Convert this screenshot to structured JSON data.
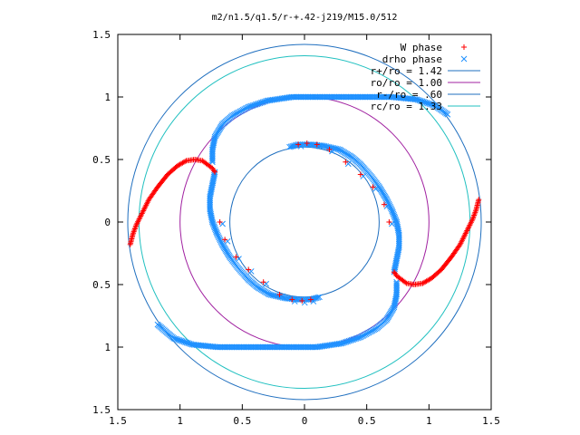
{
  "chart_data": {
    "type": "scatter",
    "title": "m2/n1.5/q1.5/r-+.42-j219/M15.0/512",
    "xlabel": "",
    "ylabel": "",
    "xlim": [
      -1.5,
      1.5
    ],
    "ylim": [
      -1.5,
      1.5
    ],
    "x_ticks": [
      {
        "value": -1.5,
        "label": "1.5"
      },
      {
        "value": -1.0,
        "label": "1"
      },
      {
        "value": -0.5,
        "label": "0.5"
      },
      {
        "value": 0,
        "label": "0"
      },
      {
        "value": 0.5,
        "label": "0.5"
      },
      {
        "value": 1.0,
        "label": "1"
      },
      {
        "value": 1.5,
        "label": "1.5"
      }
    ],
    "y_ticks": [
      {
        "value": 1.5,
        "label": "1.5"
      },
      {
        "value": 1.0,
        "label": "1"
      },
      {
        "value": 0.5,
        "label": "0.5"
      },
      {
        "value": 0,
        "label": "0"
      },
      {
        "value": -0.5,
        "label": "0.5"
      },
      {
        "value": -1.0,
        "label": "1"
      },
      {
        "value": -1.5,
        "label": "1.5"
      }
    ],
    "grid": false,
    "legend_position": "top-right",
    "series": [
      {
        "name": "W phase",
        "marker": "+",
        "color": "#ff0000",
        "arms": [
          [
            [
              -1.4,
              -0.18
            ],
            [
              -1.38,
              -0.1
            ],
            [
              -1.35,
              -0.02
            ],
            [
              -1.3,
              0.08
            ],
            [
              -1.25,
              0.18
            ],
            [
              -1.18,
              0.28
            ],
            [
              -1.1,
              0.38
            ],
            [
              -1.02,
              0.45
            ],
            [
              -0.95,
              0.49
            ],
            [
              -0.88,
              0.5
            ],
            [
              -0.82,
              0.49
            ],
            [
              -0.78,
              0.46
            ],
            [
              -0.74,
              0.43
            ],
            [
              -0.72,
              0.4
            ]
          ],
          [
            [
              1.4,
              0.18
            ],
            [
              1.38,
              0.1
            ],
            [
              1.35,
              0.02
            ],
            [
              1.3,
              -0.08
            ],
            [
              1.25,
              -0.18
            ],
            [
              1.18,
              -0.28
            ],
            [
              1.1,
              -0.38
            ],
            [
              1.02,
              -0.45
            ],
            [
              0.95,
              -0.49
            ],
            [
              0.88,
              -0.5
            ],
            [
              0.82,
              -0.49
            ],
            [
              0.78,
              -0.46
            ],
            [
              0.74,
              -0.43
            ],
            [
              0.72,
              -0.4
            ]
          ]
        ],
        "scattered": [
          [
            -0.05,
            0.62
          ],
          [
            0.02,
            0.63
          ],
          [
            0.1,
            0.62
          ],
          [
            0.2,
            0.58
          ],
          [
            0.33,
            0.48
          ],
          [
            0.45,
            0.38
          ],
          [
            0.55,
            0.28
          ],
          [
            0.64,
            0.14
          ],
          [
            0.68,
            0.0
          ],
          [
            0.05,
            -0.62
          ],
          [
            -0.02,
            -0.63
          ],
          [
            -0.1,
            -0.62
          ],
          [
            -0.2,
            -0.58
          ],
          [
            -0.33,
            -0.48
          ],
          [
            -0.45,
            -0.38
          ],
          [
            -0.55,
            -0.28
          ],
          [
            -0.64,
            -0.14
          ],
          [
            -0.68,
            0.0
          ]
        ]
      },
      {
        "name": "drho phase",
        "marker": "x",
        "color": "#1e90ff",
        "arms": [
          [
            [
              -0.72,
              0.4
            ],
            [
              -0.74,
              0.3
            ],
            [
              -0.76,
              0.2
            ],
            [
              -0.76,
              0.1
            ],
            [
              -0.74,
              0.0
            ],
            [
              -0.7,
              -0.1
            ],
            [
              -0.66,
              -0.18
            ],
            [
              -0.6,
              -0.28
            ],
            [
              -0.54,
              -0.36
            ],
            [
              -0.45,
              -0.46
            ],
            [
              -0.38,
              -0.52
            ],
            [
              -0.28,
              -0.58
            ],
            [
              -0.15,
              -0.61
            ],
            [
              -0.05,
              -0.62
            ],
            [
              0.05,
              -0.62
            ],
            [
              0.12,
              -0.6
            ],
            [
              -0.74,
              0.48
            ],
            [
              -0.74,
              0.58
            ],
            [
              -0.72,
              0.68
            ],
            [
              -0.66,
              0.78
            ],
            [
              -0.58,
              0.85
            ],
            [
              -0.45,
              0.92
            ],
            [
              -0.3,
              0.97
            ],
            [
              -0.1,
              1.0
            ],
            [
              0.1,
              1.0
            ],
            [
              0.3,
              1.0
            ],
            [
              0.5,
              1.0
            ],
            [
              0.7,
              1.0
            ],
            [
              0.9,
              0.98
            ],
            [
              1.05,
              0.93
            ],
            [
              1.15,
              0.86
            ]
          ],
          [
            [
              0.72,
              -0.4
            ],
            [
              0.74,
              -0.3
            ],
            [
              0.76,
              -0.2
            ],
            [
              0.76,
              -0.1
            ],
            [
              0.74,
              0.0
            ],
            [
              0.7,
              0.1
            ],
            [
              0.66,
              0.18
            ],
            [
              0.6,
              0.28
            ],
            [
              0.54,
              0.36
            ],
            [
              0.45,
              0.46
            ],
            [
              0.38,
              0.52
            ],
            [
              0.28,
              0.58
            ],
            [
              0.15,
              0.61
            ],
            [
              0.05,
              0.62
            ],
            [
              -0.05,
              0.62
            ],
            [
              -0.12,
              0.6
            ],
            [
              0.74,
              -0.48
            ],
            [
              0.74,
              -0.58
            ],
            [
              0.72,
              -0.68
            ],
            [
              0.66,
              -0.78
            ],
            [
              0.58,
              -0.85
            ],
            [
              0.45,
              -0.92
            ],
            [
              0.3,
              -0.97
            ],
            [
              0.1,
              -1.0
            ],
            [
              -0.1,
              -1.0
            ],
            [
              -0.3,
              -1.0
            ],
            [
              -0.5,
              -1.0
            ],
            [
              -0.7,
              -1.0
            ],
            [
              -0.9,
              -0.98
            ],
            [
              -1.05,
              -0.93
            ],
            [
              -1.18,
              -0.82
            ]
          ]
        ]
      },
      {
        "name": "r+/ro = 1.42",
        "type": "circle",
        "radius": 1.42,
        "color": "#1f6fbf"
      },
      {
        "name": "ro/ro = 1.00",
        "type": "circle",
        "radius": 1.0,
        "color": "#a020a0"
      },
      {
        "name": "r-/ro = .60",
        "type": "circle",
        "radius": 0.6,
        "color": "#1f6fbf"
      },
      {
        "name": "rc/ro = 1.33",
        "type": "circle",
        "radius": 1.33,
        "color": "#20c0c0"
      }
    ],
    "legend_labels": [
      "W phase",
      "drho phase",
      "r+/ro = 1.42",
      "ro/ro = 1.00",
      "r-/ro = .60",
      "rc/ro = 1.33"
    ]
  }
}
